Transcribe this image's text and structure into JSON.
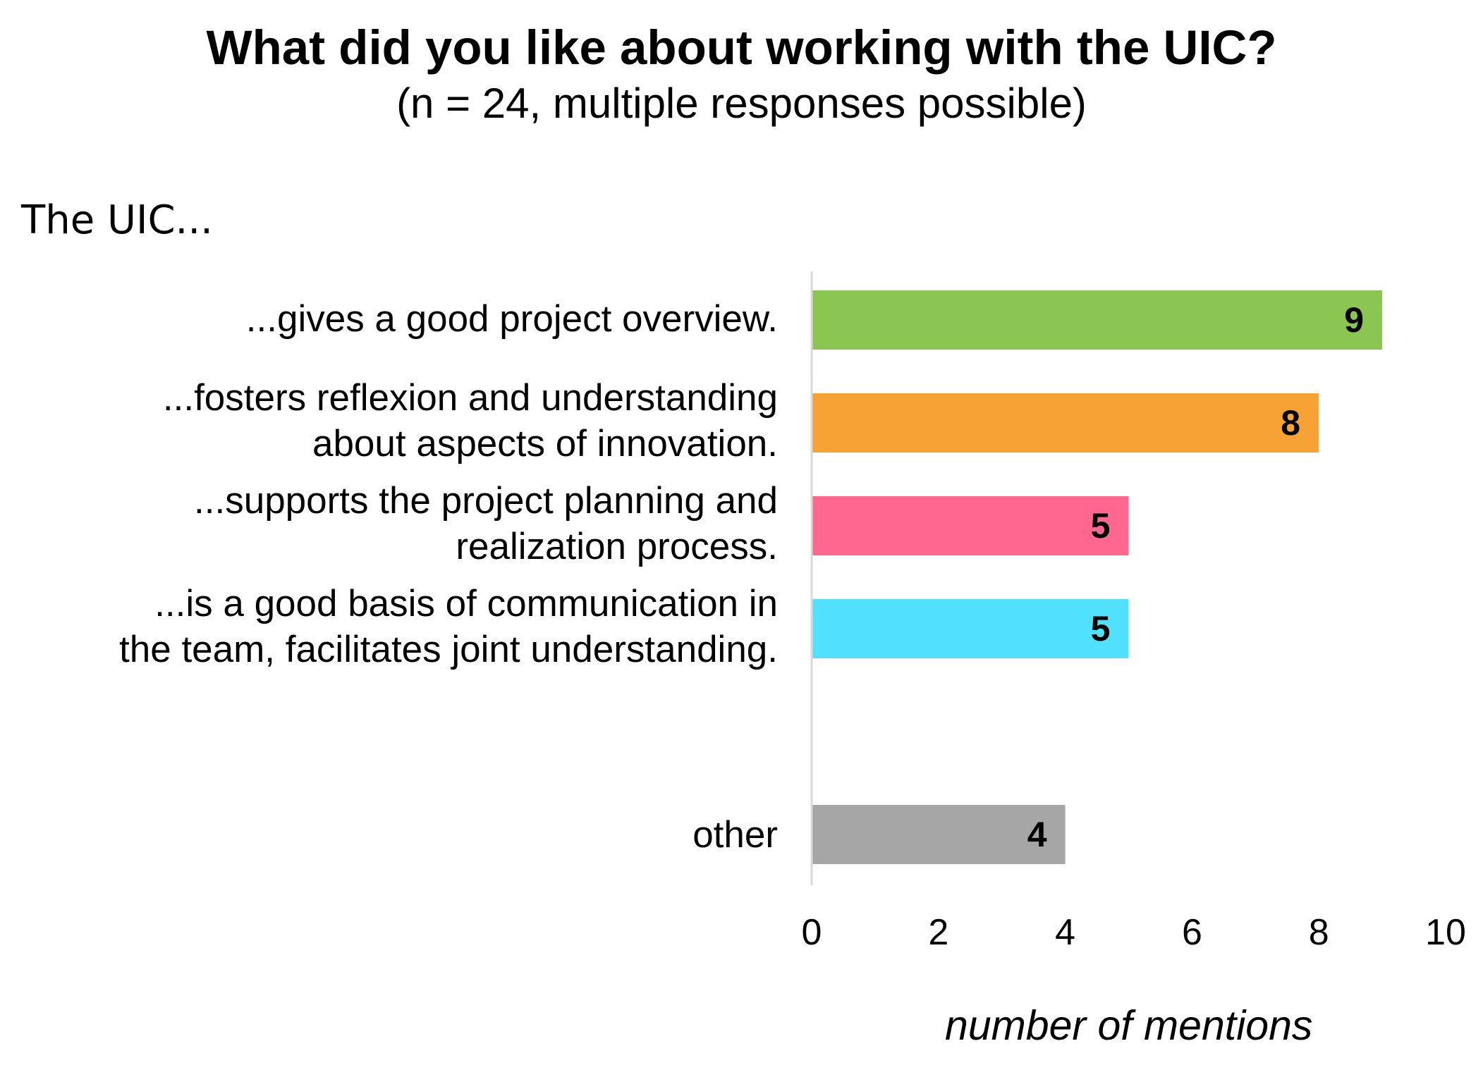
{
  "chart_data": {
    "type": "bar",
    "orientation": "horizontal",
    "title": "What did you like about working with the UIC?",
    "subtitle": "(n = 24, multiple responses possible)",
    "group_label": "The UIC...",
    "xlabel": "number of mentions",
    "xlim": [
      0,
      10
    ],
    "ticks": [
      0,
      2,
      4,
      6,
      8,
      10
    ],
    "grid": false,
    "categories": [
      [
        "...gives a good project overview."
      ],
      [
        "...fosters reflexion and understanding",
        "about aspects of innovation."
      ],
      [
        "...supports the project planning and",
        "realization process."
      ],
      [
        "...is a good basis of communication in",
        "the team, facilitates joint understanding."
      ],
      [
        "other"
      ]
    ],
    "values": [
      9,
      8,
      5,
      5,
      4
    ],
    "colors": [
      "#8BC653",
      "#F7A234",
      "#FF6690",
      "#52E0FF",
      "#A6A6A6"
    ]
  }
}
